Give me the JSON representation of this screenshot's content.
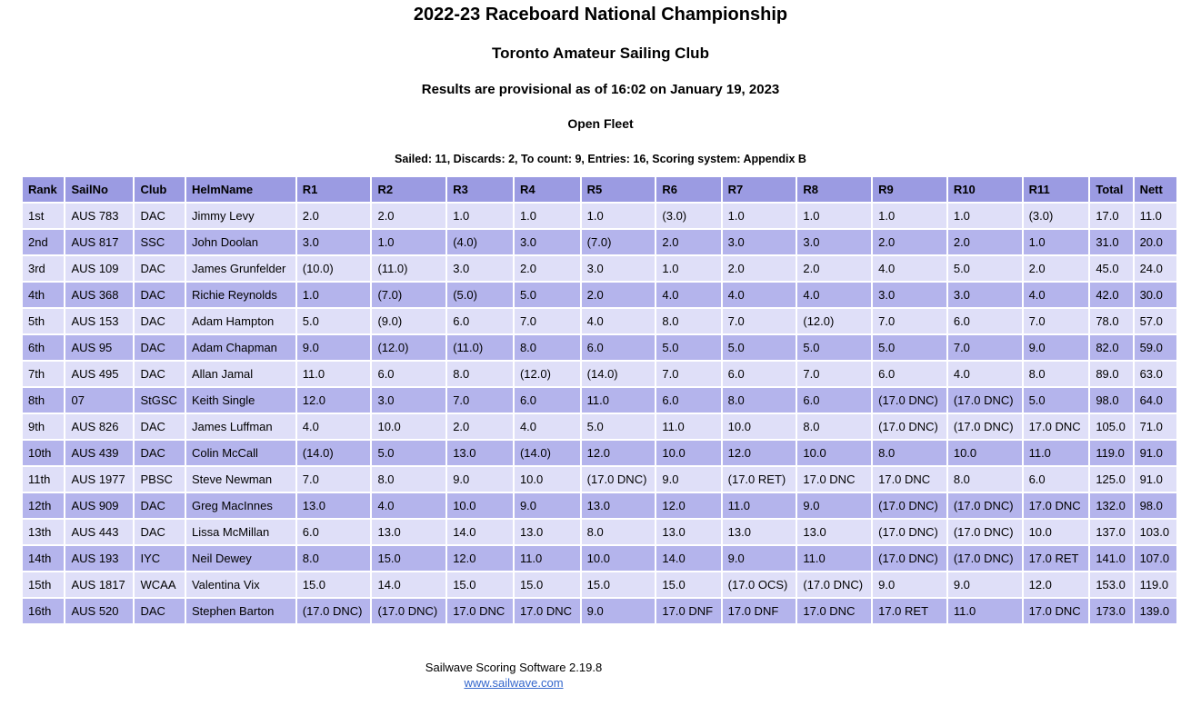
{
  "header": {
    "title": "2022-23 Raceboard National Championship",
    "venue": "Toronto Amateur Sailing Club",
    "provisional": "Results are provisional as of 16:02 on January 19, 2023",
    "fleet": "Open Fleet",
    "summary": "Sailed: 11, Discards: 2, To count: 9, Entries: 16, Scoring system: Appendix B"
  },
  "table": {
    "columns": [
      "Rank",
      "SailNo",
      "Club",
      "HelmName",
      "R1",
      "R2",
      "R3",
      "R4",
      "R5",
      "R6",
      "R7",
      "R8",
      "R9",
      "R10",
      "R11",
      "Total",
      "Nett"
    ],
    "rows": [
      [
        "1st",
        "AUS 783",
        "DAC",
        "Jimmy Levy",
        "2.0",
        "2.0",
        "1.0",
        "1.0",
        "1.0",
        "(3.0)",
        "1.0",
        "1.0",
        "1.0",
        "1.0",
        "(3.0)",
        "17.0",
        "11.0"
      ],
      [
        "2nd",
        "AUS 817",
        "SSC",
        "John Doolan",
        "3.0",
        "1.0",
        "(4.0)",
        "3.0",
        "(7.0)",
        "2.0",
        "3.0",
        "3.0",
        "2.0",
        "2.0",
        "1.0",
        "31.0",
        "20.0"
      ],
      [
        "3rd",
        "AUS 109",
        "DAC",
        "James Grunfelder",
        "(10.0)",
        "(11.0)",
        "3.0",
        "2.0",
        "3.0",
        "1.0",
        "2.0",
        "2.0",
        "4.0",
        "5.0",
        "2.0",
        "45.0",
        "24.0"
      ],
      [
        "4th",
        "AUS 368",
        "DAC",
        "Richie Reynolds",
        "1.0",
        "(7.0)",
        "(5.0)",
        "5.0",
        "2.0",
        "4.0",
        "4.0",
        "4.0",
        "3.0",
        "3.0",
        "4.0",
        "42.0",
        "30.0"
      ],
      [
        "5th",
        "AUS 153",
        "DAC",
        "Adam Hampton",
        "5.0",
        "(9.0)",
        "6.0",
        "7.0",
        "4.0",
        "8.0",
        "7.0",
        "(12.0)",
        "7.0",
        "6.0",
        "7.0",
        "78.0",
        "57.0"
      ],
      [
        "6th",
        "AUS 95",
        "DAC",
        "Adam Chapman",
        "9.0",
        "(12.0)",
        "(11.0)",
        "8.0",
        "6.0",
        "5.0",
        "5.0",
        "5.0",
        "5.0",
        "7.0",
        "9.0",
        "82.0",
        "59.0"
      ],
      [
        "7th",
        "AUS 495",
        "DAC",
        "Allan Jamal",
        "11.0",
        "6.0",
        "8.0",
        "(12.0)",
        "(14.0)",
        "7.0",
        "6.0",
        "7.0",
        "6.0",
        "4.0",
        "8.0",
        "89.0",
        "63.0"
      ],
      [
        "8th",
        "07",
        "StGSC",
        "Keith Single",
        "12.0",
        "3.0",
        "7.0",
        "6.0",
        "11.0",
        "6.0",
        "8.0",
        "6.0",
        "(17.0 DNC)",
        "(17.0 DNC)",
        "5.0",
        "98.0",
        "64.0"
      ],
      [
        "9th",
        "AUS 826",
        "DAC",
        "James Luffman",
        "4.0",
        "10.0",
        "2.0",
        "4.0",
        "5.0",
        "11.0",
        "10.0",
        "8.0",
        "(17.0 DNC)",
        "(17.0 DNC)",
        "17.0 DNC",
        "105.0",
        "71.0"
      ],
      [
        "10th",
        "AUS 439",
        "DAC",
        "Colin McCall",
        "(14.0)",
        "5.0",
        "13.0",
        "(14.0)",
        "12.0",
        "10.0",
        "12.0",
        "10.0",
        "8.0",
        "10.0",
        "11.0",
        "119.0",
        "91.0"
      ],
      [
        "11th",
        "AUS 1977",
        "PBSC",
        "Steve Newman",
        "7.0",
        "8.0",
        "9.0",
        "10.0",
        "(17.0 DNC)",
        "9.0",
        "(17.0 RET)",
        "17.0 DNC",
        "17.0 DNC",
        "8.0",
        "6.0",
        "125.0",
        "91.0"
      ],
      [
        "12th",
        "AUS 909",
        "DAC",
        "Greg MacInnes",
        "13.0",
        "4.0",
        "10.0",
        "9.0",
        "13.0",
        "12.0",
        "11.0",
        "9.0",
        "(17.0 DNC)",
        "(17.0 DNC)",
        "17.0 DNC",
        "132.0",
        "98.0"
      ],
      [
        "13th",
        "AUS 443",
        "DAC",
        "Lissa McMillan",
        "6.0",
        "13.0",
        "14.0",
        "13.0",
        "8.0",
        "13.0",
        "13.0",
        "13.0",
        "(17.0 DNC)",
        "(17.0 DNC)",
        "10.0",
        "137.0",
        "103.0"
      ],
      [
        "14th",
        "AUS 193",
        "IYC",
        "Neil Dewey",
        "8.0",
        "15.0",
        "12.0",
        "11.0",
        "10.0",
        "14.0",
        "9.0",
        "11.0",
        "(17.0 DNC)",
        "(17.0 DNC)",
        "17.0 RET",
        "141.0",
        "107.0"
      ],
      [
        "15th",
        "AUS 1817",
        "WCAA",
        "Valentina Vix",
        "15.0",
        "14.0",
        "15.0",
        "15.0",
        "15.0",
        "15.0",
        "(17.0 OCS)",
        "(17.0 DNC)",
        "9.0",
        "9.0",
        "12.0",
        "153.0",
        "119.0"
      ],
      [
        "16th",
        "AUS 520",
        "DAC",
        "Stephen Barton",
        "(17.0 DNC)",
        "(17.0 DNC)",
        "17.0 DNC",
        "17.0 DNC",
        "9.0",
        "17.0 DNF",
        "17.0 DNF",
        "17.0 DNC",
        "17.0 RET",
        "11.0",
        "17.0 DNC",
        "173.0",
        "139.0"
      ]
    ]
  },
  "footer": {
    "software": "Sailwave Scoring Software 2.19.8",
    "link": "www.sailwave.com"
  },
  "colors": {
    "header_bg": "#9B9BE2",
    "row_light_bg": "#DFDFF8",
    "row_dark_bg": "#B4B4EC",
    "link": "#3366CC"
  }
}
